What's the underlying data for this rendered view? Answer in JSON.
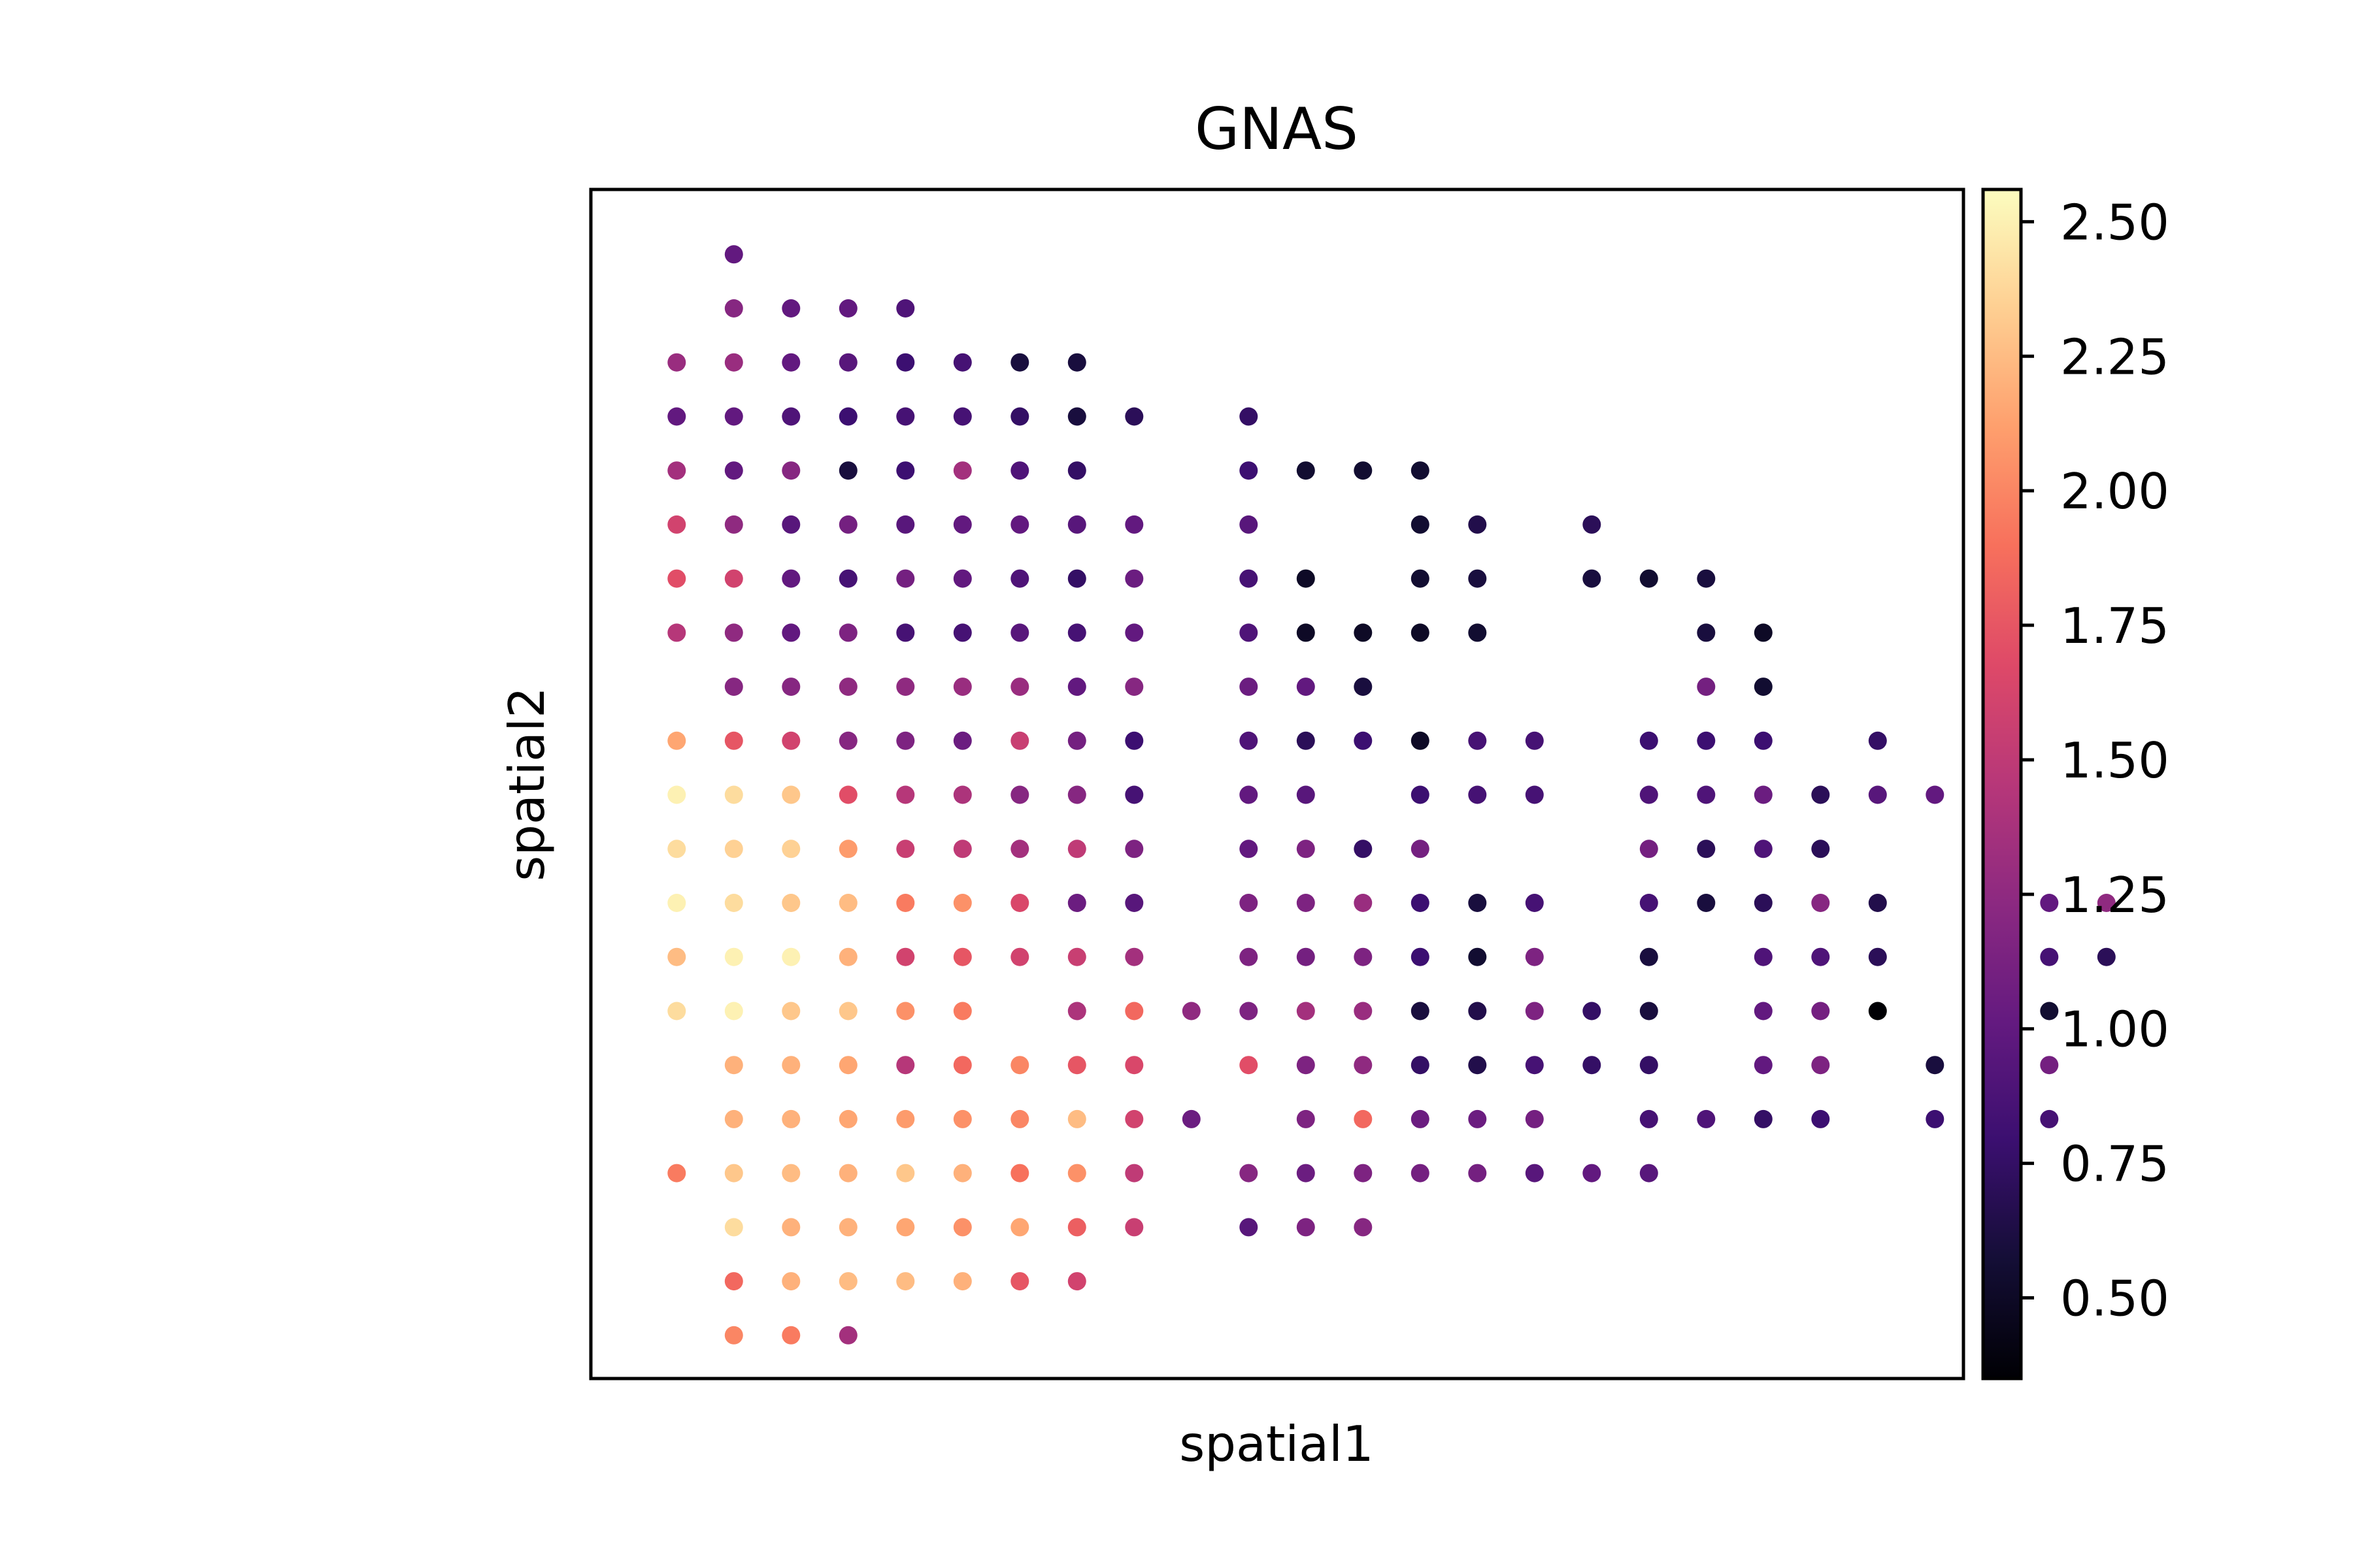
{
  "chart_data": {
    "type": "scatter",
    "title": "GNAS",
    "xlabel": "spatial1",
    "ylabel": "spatial2",
    "grid": false,
    "x_ticks_shown": false,
    "y_ticks_shown": false,
    "xlim": [
      0.5,
      24.5
    ],
    "ylim": [
      0.5,
      22.5
    ],
    "colormap": "magma",
    "colorbar": {
      "min": 0.35,
      "max": 2.56,
      "ticks": [
        0.5,
        0.75,
        1.0,
        1.25,
        1.5,
        1.75,
        2.0,
        2.25,
        2.5
      ],
      "tick_labels": [
        "0.50",
        "0.75",
        "1.00",
        "1.25",
        "1.50",
        "1.75",
        "2.00",
        "2.25",
        "2.50"
      ]
    },
    "rows": [
      {
        "y": 21.3,
        "x0": 3,
        "values": [
          1.0
        ]
      },
      {
        "y": 20.3,
        "x0": 3,
        "values": [
          1.2,
          1.0,
          1.0,
          0.9
        ]
      },
      {
        "y": 19.3,
        "x0": 2,
        "values": [
          1.3,
          1.3,
          1.0,
          0.95,
          0.8,
          0.85,
          0.6,
          0.6
        ]
      },
      {
        "y": 19.3,
        "x0": 11,
        "values": [],
        "note": ""
      },
      {
        "y": 18.3,
        "x0": 2,
        "values": [
          1.0,
          1.0,
          0.9,
          0.8,
          0.85,
          0.85,
          0.75,
          0.6,
          0.7,
          null,
          0.75
        ]
      },
      {
        "y": 17.3,
        "x0": 2,
        "values": [
          1.35,
          1.0,
          1.2,
          0.6,
          0.8,
          1.35,
          0.9,
          0.75,
          null,
          null,
          0.8,
          0.55,
          0.55,
          0.55
        ]
      },
      {
        "y": 16.3,
        "x0": 2,
        "values": [
          1.6,
          1.25,
          0.95,
          1.1,
          0.95,
          1.0,
          1.0,
          0.95,
          1.0,
          null,
          0.95,
          null,
          null,
          0.55,
          0.65,
          null,
          0.7
        ]
      },
      {
        "y": 15.3,
        "x0": 2,
        "values": [
          1.7,
          1.6,
          1.0,
          0.85,
          1.1,
          1.0,
          0.9,
          0.75,
          1.05,
          null,
          0.85,
          0.5,
          null,
          0.55,
          0.6,
          null,
          0.6,
          0.55,
          0.6
        ]
      },
      {
        "y": 14.3,
        "x0": 2,
        "values": [
          1.45,
          1.25,
          1.0,
          1.15,
          0.85,
          0.85,
          0.95,
          0.85,
          1.0,
          null,
          0.9,
          0.5,
          0.5,
          0.5,
          0.55,
          null,
          null,
          null,
          0.6,
          0.5
        ]
      },
      {
        "y": 13.3,
        "x0": 3,
        "values": [
          1.2,
          1.2,
          1.25,
          1.25,
          1.3,
          1.3,
          1.0,
          1.2,
          null,
          1.05,
          1.0,
          0.6,
          null,
          null,
          null,
          null,
          null,
          1.1,
          0.55
        ]
      },
      {
        "y": 12.3,
        "x0": 2,
        "values": [
          2.15,
          1.75,
          1.6,
          1.2,
          1.15,
          1.05,
          1.55,
          1.1,
          0.8,
          null,
          0.9,
          0.7,
          0.8,
          0.5,
          0.85,
          0.85,
          null,
          0.8,
          0.8,
          0.8,
          null,
          0.75
        ]
      },
      {
        "y": 11.3,
        "x0": 2,
        "values": [
          2.5,
          2.4,
          2.3,
          1.7,
          1.45,
          1.4,
          1.2,
          1.2,
          0.85,
          null,
          1.0,
          0.95,
          null,
          0.8,
          0.85,
          0.85,
          null,
          0.9,
          0.9,
          1.05,
          0.7,
          0.95,
          1.0,
          0.8
        ]
      },
      {
        "y": 10.3,
        "x0": 2,
        "values": [
          2.4,
          2.35,
          2.35,
          2.1,
          1.55,
          1.5,
          1.35,
          1.5,
          1.15,
          null,
          1.0,
          1.15,
          0.75,
          1.1,
          null,
          null,
          null,
          1.1,
          0.7,
          0.9,
          0.7,
          null,
          null,
          0.9
        ]
      },
      {
        "y": 9.3,
        "x0": 2,
        "values": [
          2.5,
          2.4,
          2.3,
          2.25,
          1.95,
          2.05,
          1.65,
          1.05,
          0.95,
          null,
          1.15,
          1.15,
          1.3,
          0.8,
          0.6,
          0.85,
          null,
          0.85,
          0.6,
          0.7,
          1.2,
          0.65,
          null,
          0.9,
          1.0,
          1.25
        ]
      },
      {
        "y": 8.3,
        "x0": 2,
        "values": [
          2.25,
          2.5,
          2.5,
          2.2,
          1.6,
          1.75,
          1.6,
          1.55,
          1.35,
          null,
          1.15,
          1.1,
          1.15,
          0.8,
          0.55,
          1.15,
          null,
          0.6,
          null,
          0.9,
          0.9,
          0.7,
          null,
          0.65,
          0.85,
          0.7
        ]
      },
      {
        "y": 7.3,
        "x0": 2,
        "values": [
          2.4,
          2.5,
          2.3,
          2.3,
          2.05,
          1.95,
          null,
          1.4,
          1.85,
          1.25,
          1.15,
          1.35,
          1.3,
          0.6,
          0.65,
          1.15,
          0.75,
          0.6,
          null,
          1.0,
          1.1,
          0.35,
          null,
          1.15,
          0.55
        ]
      },
      {
        "y": 6.3,
        "x0": 3,
        "values": [
          2.2,
          2.2,
          2.15,
          1.45,
          1.85,
          2.0,
          1.75,
          1.65,
          null,
          1.7,
          1.15,
          1.25,
          0.75,
          0.65,
          0.85,
          0.75,
          0.75,
          null,
          1.0,
          1.15,
          null,
          0.6,
          0.85,
          1.1
        ]
      },
      {
        "y": 5.3,
        "x0": 3,
        "values": [
          2.2,
          2.2,
          2.15,
          2.1,
          2.05,
          2.0,
          2.25,
          1.6,
          1.05,
          null,
          1.15,
          1.85,
          1.05,
          1.05,
          1.1,
          null,
          0.85,
          0.9,
          0.75,
          0.8,
          null,
          0.8,
          null,
          0.85
        ]
      },
      {
        "y": 4.3,
        "x0": 2,
        "values": [
          1.95,
          2.3,
          2.25,
          2.2,
          2.3,
          2.2,
          1.9,
          2.05,
          1.5,
          null,
          1.2,
          1.05,
          1.15,
          1.1,
          1.1,
          0.95,
          1.0,
          0.95
        ]
      },
      {
        "y": 3.3,
        "x0": 3,
        "values": [
          2.4,
          2.2,
          2.2,
          2.15,
          2.05,
          2.15,
          1.8,
          1.55,
          null,
          0.95,
          1.15,
          1.2
        ]
      },
      {
        "y": 2.3,
        "x0": 3,
        "values": [
          1.85,
          2.2,
          2.25,
          2.25,
          2.2,
          1.75,
          1.6
        ]
      },
      {
        "y": 1.3,
        "x0": 3,
        "values": [
          2.0,
          1.95,
          1.35
        ]
      }
    ]
  }
}
